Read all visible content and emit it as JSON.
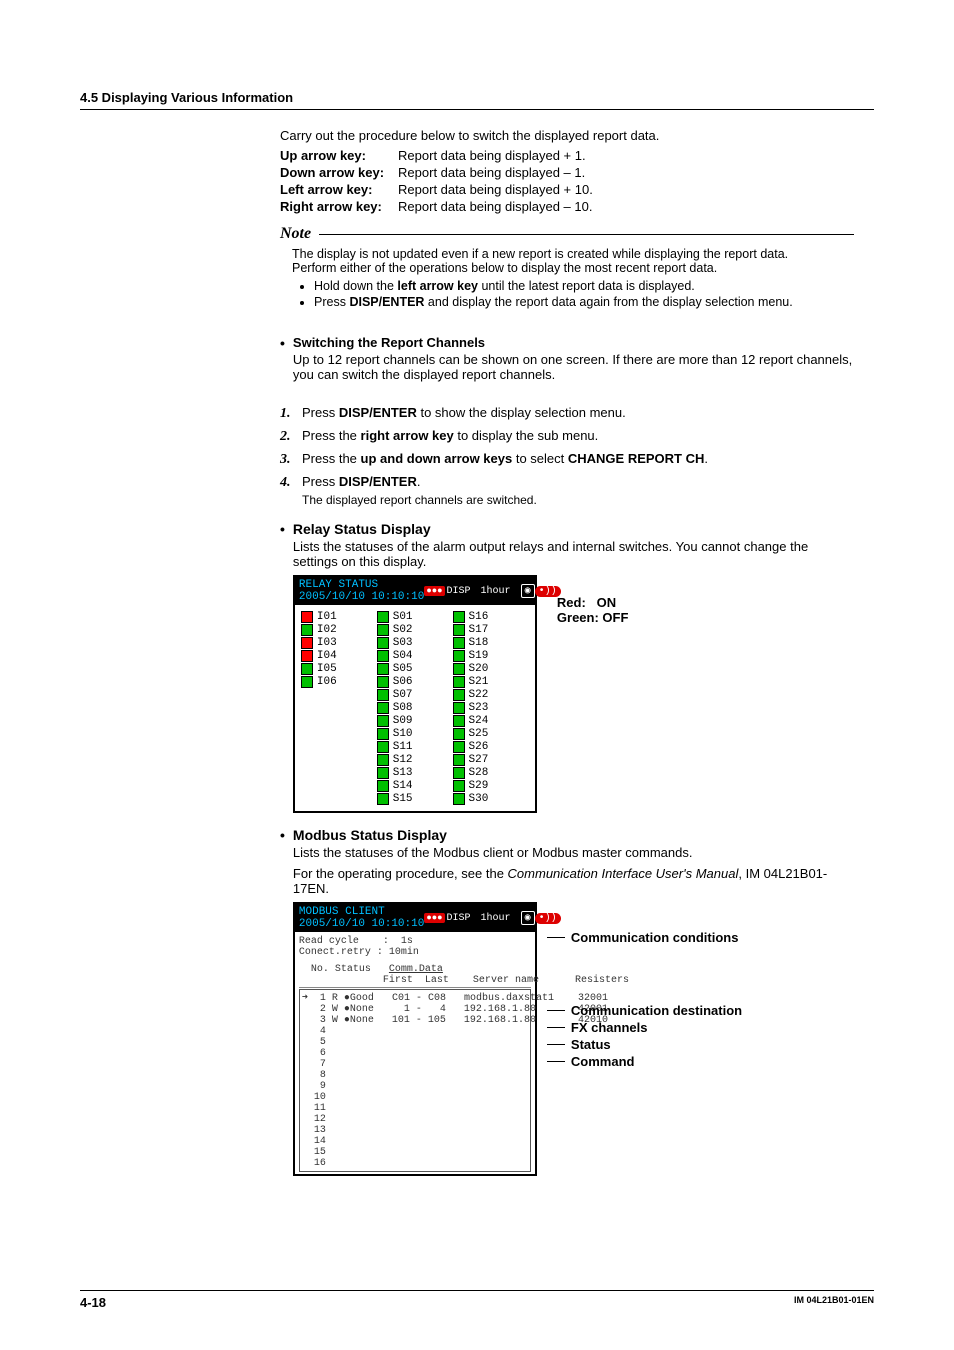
{
  "header": {
    "section": "4.5  Displaying Various Information"
  },
  "intro": "Carry out the procedure below to switch the displayed report data.",
  "keys": [
    {
      "k": "Up arrow key:",
      "v": "Report data being displayed + 1."
    },
    {
      "k": "Down arrow key:",
      "v": "Report data being displayed – 1."
    },
    {
      "k": "Left arrow key:",
      "v": "Report data being displayed + 10."
    },
    {
      "k": "Right arrow key:",
      "v": "Report data being displayed – 10."
    }
  ],
  "note": {
    "label": "Note",
    "line1": "The display is not updated even if a new report is created while displaying the report data.",
    "line2": "Perform either of the operations below to display the most recent report data.",
    "b1_pre": "Hold down the ",
    "b1_bold": "left arrow key",
    "b1_post": " until the latest report data is displayed.",
    "b2_pre": "Press ",
    "b2_bold": "DISP/ENTER",
    "b2_post": " and display the report data again from the display selection menu."
  },
  "switch": {
    "title": "Switching the Report Channels",
    "desc": "Up to 12 report channels can be shown on one screen. If there are more than 12 report channels, you can switch the displayed report channels.",
    "s1_pre": "Press ",
    "s1_b": "DISP/ENTER",
    "s1_post": " to show the display selection menu.",
    "s2_pre": "Press the ",
    "s2_b": "right arrow key",
    "s2_post": " to display the sub menu.",
    "s3_pre": "Press the ",
    "s3_b": "up and down arrow keys",
    "s3_mid": " to select ",
    "s3_b2": "CHANGE REPORT CH",
    "s3_post": ".",
    "s4_pre": "Press ",
    "s4_b": "DISP/ENTER",
    "s4_post": ".",
    "s4_note": "The displayed report channels are switched."
  },
  "relay": {
    "title": "Relay Status Display",
    "desc": "Lists the statuses of the alarm output relays and internal switches. You cannot change the settings on this display.",
    "shot_title": "RELAY STATUS\n2005/10/10 10:10:10",
    "shot_time": "1hour",
    "legend_red": "Red:",
    "legend_on": "ON",
    "legend_green": "Green: OFF",
    "col1": [
      {
        "c": "red",
        "t": "I01"
      },
      {
        "c": "green",
        "t": "I02"
      },
      {
        "c": "red",
        "t": "I03"
      },
      {
        "c": "red",
        "t": "I04"
      },
      {
        "c": "green",
        "t": "I05"
      },
      {
        "c": "green",
        "t": "I06"
      }
    ],
    "col2": [
      {
        "c": "green",
        "t": "S01"
      },
      {
        "c": "green",
        "t": "S02"
      },
      {
        "c": "green",
        "t": "S03"
      },
      {
        "c": "green",
        "t": "S04"
      },
      {
        "c": "green",
        "t": "S05"
      },
      {
        "c": "green",
        "t": "S06"
      },
      {
        "c": "green",
        "t": "S07"
      },
      {
        "c": "green",
        "t": "S08"
      },
      {
        "c": "green",
        "t": "S09"
      },
      {
        "c": "green",
        "t": "S10"
      },
      {
        "c": "green",
        "t": "S11"
      },
      {
        "c": "green",
        "t": "S12"
      },
      {
        "c": "green",
        "t": "S13"
      },
      {
        "c": "green",
        "t": "S14"
      },
      {
        "c": "green",
        "t": "S15"
      }
    ],
    "col3": [
      {
        "c": "green",
        "t": "S16"
      },
      {
        "c": "green",
        "t": "S17"
      },
      {
        "c": "green",
        "t": "S18"
      },
      {
        "c": "green",
        "t": "S19"
      },
      {
        "c": "green",
        "t": "S20"
      },
      {
        "c": "green",
        "t": "S21"
      },
      {
        "c": "green",
        "t": "S22"
      },
      {
        "c": "green",
        "t": "S23"
      },
      {
        "c": "green",
        "t": "S24"
      },
      {
        "c": "green",
        "t": "S25"
      },
      {
        "c": "green",
        "t": "S26"
      },
      {
        "c": "green",
        "t": "S27"
      },
      {
        "c": "green",
        "t": "S28"
      },
      {
        "c": "green",
        "t": "S29"
      },
      {
        "c": "green",
        "t": "S30"
      }
    ]
  },
  "modbus": {
    "title": "Modbus Status Display",
    "desc1": "Lists the statuses of the Modbus client or Modbus master commands.",
    "desc2_pre": "For the operating procedure, see the ",
    "desc2_it": "Communication Interface User's Manual",
    "desc2_post": ", IM 04L21B01-17EN.",
    "shot_title": "MODBUS CLIENT\n2005/10/10 10:10:10",
    "shot_time": "1hour",
    "cond": "Read cycle    :  1s\nConect.retry : 10min",
    "hdr": "  No. Status   Comm.Data\n              First  Last    Server name       Resisters",
    "rows": [
      "➜  1 R ●Good   C01 - C08   modbus.daxstat1    32001",
      "   2 W ●None     1 -   4   192.168.1.80       42001",
      "   3 W ●None   101 - 105   192.168.1.80       42010",
      "   4",
      "   5",
      "   6",
      "   7",
      "   8",
      "   9",
      "  10",
      "  11",
      "  12",
      "  13",
      "  14",
      "  15",
      "  16"
    ],
    "labels": {
      "c1": "Communication conditions",
      "c2": "Communication destination",
      "c3": "FX channels",
      "c4": "Status",
      "c5": "Command"
    }
  },
  "footer": {
    "page": "4-18",
    "doc": "IM 04L21B01-01EN"
  }
}
